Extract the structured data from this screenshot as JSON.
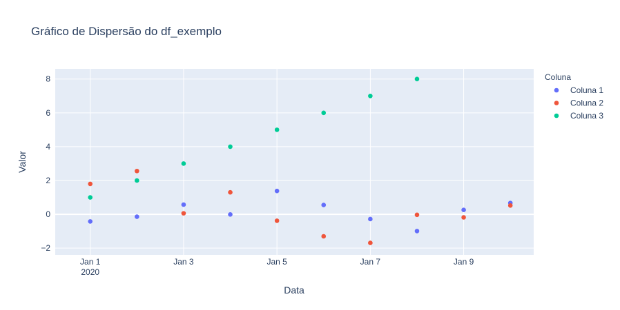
{
  "chart_data": {
    "type": "scatter",
    "title": "Gráfico de Dispersão do df_exemplo",
    "xlabel": "Data",
    "ylabel": "Valor",
    "x": [
      "2020-01-01",
      "2020-01-02",
      "2020-01-03",
      "2020-01-04",
      "2020-01-05",
      "2020-01-06",
      "2020-01-07",
      "2020-01-08",
      "2020-01-09",
      "2020-01-10"
    ],
    "x_ticks": [
      {
        "date": "2020-01-01",
        "label": "Jan 1",
        "sublabel": "2020"
      },
      {
        "date": "2020-01-03",
        "label": "Jan 3",
        "sublabel": ""
      },
      {
        "date": "2020-01-05",
        "label": "Jan 5",
        "sublabel": ""
      },
      {
        "date": "2020-01-07",
        "label": "Jan 7",
        "sublabel": ""
      },
      {
        "date": "2020-01-09",
        "label": "Jan 9",
        "sublabel": ""
      }
    ],
    "xlim": [
      "2019-12-31T06:00",
      "2020-01-10T12:00"
    ],
    "y_ticks": [
      {
        "value": -2,
        "label": "−2"
      },
      {
        "value": 0,
        "label": "0"
      },
      {
        "value": 2,
        "label": "2"
      },
      {
        "value": 4,
        "label": "4"
      },
      {
        "value": 6,
        "label": "6"
      },
      {
        "value": 8,
        "label": "8"
      }
    ],
    "ylim": [
      -2.4,
      8.6
    ],
    "grid": true,
    "legend": {
      "title": "Coluna",
      "position": "top-right"
    },
    "series": [
      {
        "name": "Coluna 1",
        "color": "#636efa",
        "values": [
          -0.42,
          -0.14,
          0.57,
          -0.01,
          1.38,
          0.55,
          -0.28,
          -0.99,
          0.26,
          0.67
        ]
      },
      {
        "name": "Coluna 2",
        "color": "#ef553b",
        "values": [
          1.8,
          2.56,
          0.06,
          1.3,
          -0.38,
          -1.3,
          -1.69,
          -0.03,
          -0.18,
          0.52
        ]
      },
      {
        "name": "Coluna 3",
        "color": "#00cc96",
        "values": [
          1,
          2,
          3,
          4,
          5,
          6,
          7,
          8,
          null,
          null
        ]
      }
    ]
  }
}
